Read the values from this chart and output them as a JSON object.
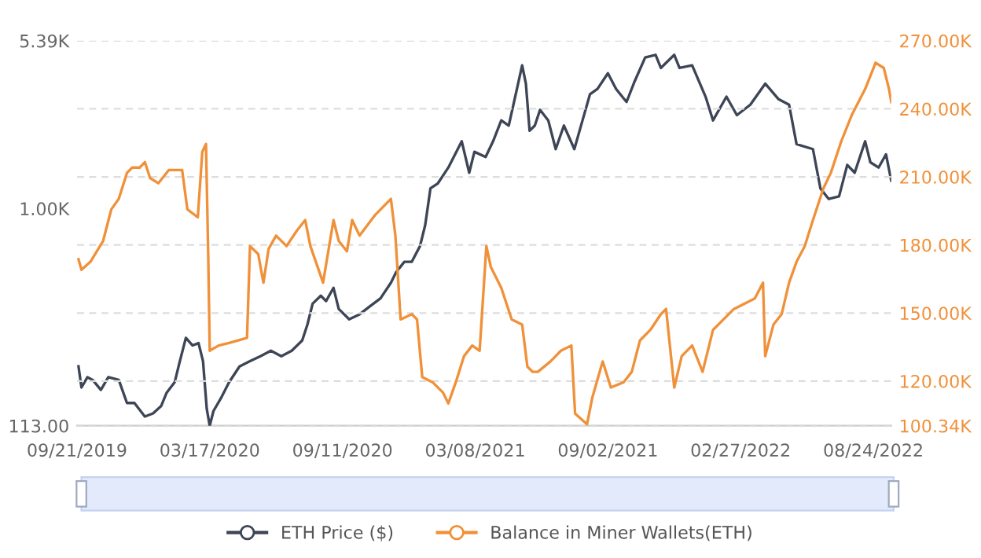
{
  "chart_data": {
    "type": "line",
    "xlim": [
      "2019-09-21",
      "2022-09-17"
    ],
    "xticks": [
      {
        "value": "2019-09-21",
        "label": "09/21/2019"
      },
      {
        "value": "2020-03-17",
        "label": "03/17/2020"
      },
      {
        "value": "2020-09-11",
        "label": "09/11/2020"
      },
      {
        "value": "2021-03-08",
        "label": "03/08/2021"
      },
      {
        "value": "2021-09-02",
        "label": "09/02/2021"
      },
      {
        "value": "2022-02-27",
        "label": "02/27/2022"
      },
      {
        "value": "2022-08-24",
        "label": "08/24/2022"
      }
    ],
    "log": "y",
    "ylim": [
      113,
      5390
    ],
    "yticks": [
      {
        "value": 113,
        "label": "113.00"
      },
      {
        "value": 1000,
        "label": "1.00K"
      },
      {
        "value": 5390,
        "label": "5.39K"
      }
    ],
    "y2lim": [
      100340,
      270000
    ],
    "y2ticks": [
      {
        "value": 100340,
        "label": "100.34K"
      },
      {
        "value": 120000,
        "label": "120.00K"
      },
      {
        "value": 150000,
        "label": "150.00K"
      },
      {
        "value": 180000,
        "label": "180.00K"
      },
      {
        "value": 210000,
        "label": "210.00K"
      },
      {
        "value": 240000,
        "label": "240.00K"
      },
      {
        "value": 270000,
        "label": "270.00K"
      }
    ],
    "grid": "y2",
    "legend": "bottom",
    "marker": "none",
    "line_style": "solid",
    "series": [
      {
        "name": "ETH Price ($)",
        "color": "#3d4556",
        "x": [
          "2019-09-23",
          "2019-09-27",
          "2019-10-05",
          "2019-10-12",
          "2019-10-23",
          "2019-11-02",
          "2019-11-16",
          "2019-11-27",
          "2019-12-07",
          "2019-12-21",
          "2020-01-01",
          "2020-01-12",
          "2020-01-19",
          "2020-01-30",
          "2020-02-05",
          "2020-02-14",
          "2020-02-23",
          "2020-03-02",
          "2020-03-08",
          "2020-03-13",
          "2020-03-17",
          "2020-03-22",
          "2020-04-01",
          "2020-04-12",
          "2020-04-26",
          "2020-05-10",
          "2020-05-24",
          "2020-06-07",
          "2020-06-21",
          "2020-07-05",
          "2020-07-19",
          "2020-07-26",
          "2020-08-02",
          "2020-08-13",
          "2020-08-20",
          "2020-08-30",
          "2020-09-06",
          "2020-09-20",
          "2020-10-04",
          "2020-10-18",
          "2020-11-01",
          "2020-11-15",
          "2020-11-22",
          "2020-12-03",
          "2020-12-13",
          "2020-12-24",
          "2020-12-31",
          "2021-01-07",
          "2021-01-17",
          "2021-01-31",
          "2021-02-18",
          "2021-02-28",
          "2021-03-07",
          "2021-03-22",
          "2021-04-01",
          "2021-04-12",
          "2021-04-22",
          "2021-05-03",
          "2021-05-10",
          "2021-05-15",
          "2021-05-20",
          "2021-05-27",
          "2021-06-03",
          "2021-06-14",
          "2021-06-24",
          "2021-07-05",
          "2021-07-19",
          "2021-07-29",
          "2021-08-09",
          "2021-08-19",
          "2021-09-02",
          "2021-09-13",
          "2021-09-27",
          "2021-10-08",
          "2021-10-22",
          "2021-11-05",
          "2021-11-12",
          "2021-11-30",
          "2021-12-07",
          "2021-12-24",
          "2022-01-11",
          "2022-01-21",
          "2022-02-08",
          "2022-02-22",
          "2022-03-12",
          "2022-04-01",
          "2022-04-19",
          "2022-05-03",
          "2022-05-13",
          "2022-06-04",
          "2022-06-14",
          "2022-06-25",
          "2022-07-09",
          "2022-07-20",
          "2022-07-30",
          "2022-08-13",
          "2022-08-20",
          "2022-08-31",
          "2022-09-10",
          "2022-09-17"
        ],
        "values": [
          205,
          166,
          184,
          179,
          162,
          184,
          179,
          142,
          142,
          124,
          128,
          138,
          157,
          175,
          210,
          273,
          253,
          259,
          216,
          134,
          113,
          131,
          149,
          175,
          205,
          216,
          227,
          240,
          227,
          240,
          266,
          312,
          385,
          417,
          395,
          451,
          365,
          329,
          346,
          375,
          406,
          475,
          528,
          586,
          586,
          686,
          848,
          1224,
          1288,
          1509,
          1964,
          1433,
          1768,
          1678,
          1964,
          2423,
          2300,
          3322,
          4209,
          3503,
          2183,
          2300,
          2693,
          2423,
          1816,
          2300,
          1816,
          2362,
          3153,
          3322,
          3888,
          3322,
          2915,
          3594,
          4554,
          4678,
          4102,
          4678,
          4102,
          4209,
          3073,
          2423,
          3073,
          2554,
          2836,
          3503,
          2994,
          2836,
          1910,
          1816,
          1224,
          1102,
          1130,
          1550,
          1433,
          1964,
          1591,
          1509,
          1723,
          1324
        ]
      },
      {
        "name": "Balance in Miner Wallets(ETH)",
        "color": "#f0913a",
        "axis": "y2",
        "x": [
          "2019-09-23",
          "2019-09-27",
          "2019-10-09",
          "2019-10-26",
          "2019-11-06",
          "2019-11-16",
          "2019-11-27",
          "2019-12-04",
          "2019-12-14",
          "2019-12-21",
          "2019-12-28",
          "2020-01-08",
          "2020-01-22",
          "2020-02-09",
          "2020-02-16",
          "2020-03-01",
          "2020-03-07",
          "2020-03-12",
          "2020-03-15",
          "2020-03-17",
          "2020-03-29",
          "2020-04-12",
          "2020-05-06",
          "2020-05-10",
          "2020-05-21",
          "2020-05-28",
          "2020-06-04",
          "2020-06-14",
          "2020-06-28",
          "2020-07-12",
          "2020-07-23",
          "2020-07-30",
          "2020-08-16",
          "2020-08-30",
          "2020-09-06",
          "2020-09-17",
          "2020-09-24",
          "2020-10-04",
          "2020-10-25",
          "2020-11-15",
          "2020-11-21",
          "2020-11-28",
          "2020-12-13",
          "2020-12-20",
          "2020-12-27",
          "2021-01-10",
          "2021-01-24",
          "2021-01-31",
          "2021-02-10",
          "2021-02-21",
          "2021-03-04",
          "2021-03-14",
          "2021-03-23",
          "2021-03-29",
          "2021-04-12",
          "2021-04-26",
          "2021-05-10",
          "2021-05-17",
          "2021-05-24",
          "2021-05-31",
          "2021-06-17",
          "2021-07-01",
          "2021-07-15",
          "2021-07-20",
          "2021-08-05",
          "2021-08-12",
          "2021-08-26",
          "2021-09-06",
          "2021-09-23",
          "2021-10-04",
          "2021-10-15",
          "2021-10-29",
          "2021-11-12",
          "2021-11-19",
          "2021-11-30",
          "2021-12-10",
          "2021-12-24",
          "2022-01-07",
          "2022-01-21",
          "2022-02-04",
          "2022-02-18",
          "2022-03-04",
          "2022-03-18",
          "2022-03-29",
          "2022-04-01",
          "2022-04-12",
          "2022-04-23",
          "2022-05-03",
          "2022-05-13",
          "2022-05-24",
          "2022-06-04",
          "2022-06-18",
          "2022-06-28",
          "2022-07-12",
          "2022-07-26",
          "2022-08-13",
          "2022-08-27",
          "2022-09-07",
          "2022-09-14",
          "2022-09-17"
        ],
        "values": [
          173700,
          169100,
          172600,
          181800,
          195700,
          200300,
          211800,
          214100,
          214100,
          216500,
          209500,
          207200,
          213000,
          213000,
          195700,
          192200,
          221000,
          224500,
          174900,
          133400,
          135700,
          136800,
          139100,
          179500,
          176000,
          163400,
          178300,
          184100,
          179500,
          186400,
          191000,
          179500,
          163400,
          191000,
          181800,
          177200,
          191000,
          184100,
          193300,
          200300,
          184100,
          147200,
          149500,
          147200,
          121800,
          119500,
          114900,
          110200,
          119500,
          131000,
          135700,
          133400,
          179500,
          170300,
          161100,
          147200,
          144900,
          126400,
          124100,
          124100,
          128700,
          133400,
          135700,
          105700,
          101000,
          112600,
          128700,
          117200,
          119500,
          124100,
          137900,
          142600,
          149500,
          151800,
          117200,
          131000,
          135700,
          124100,
          142600,
          147200,
          151800,
          154100,
          156400,
          163400,
          131000,
          144900,
          149500,
          163400,
          172600,
          179500,
          191000,
          204900,
          211800,
          225700,
          237200,
          248700,
          260300,
          258000,
          248700,
          243000
        ]
      }
    ]
  }
}
